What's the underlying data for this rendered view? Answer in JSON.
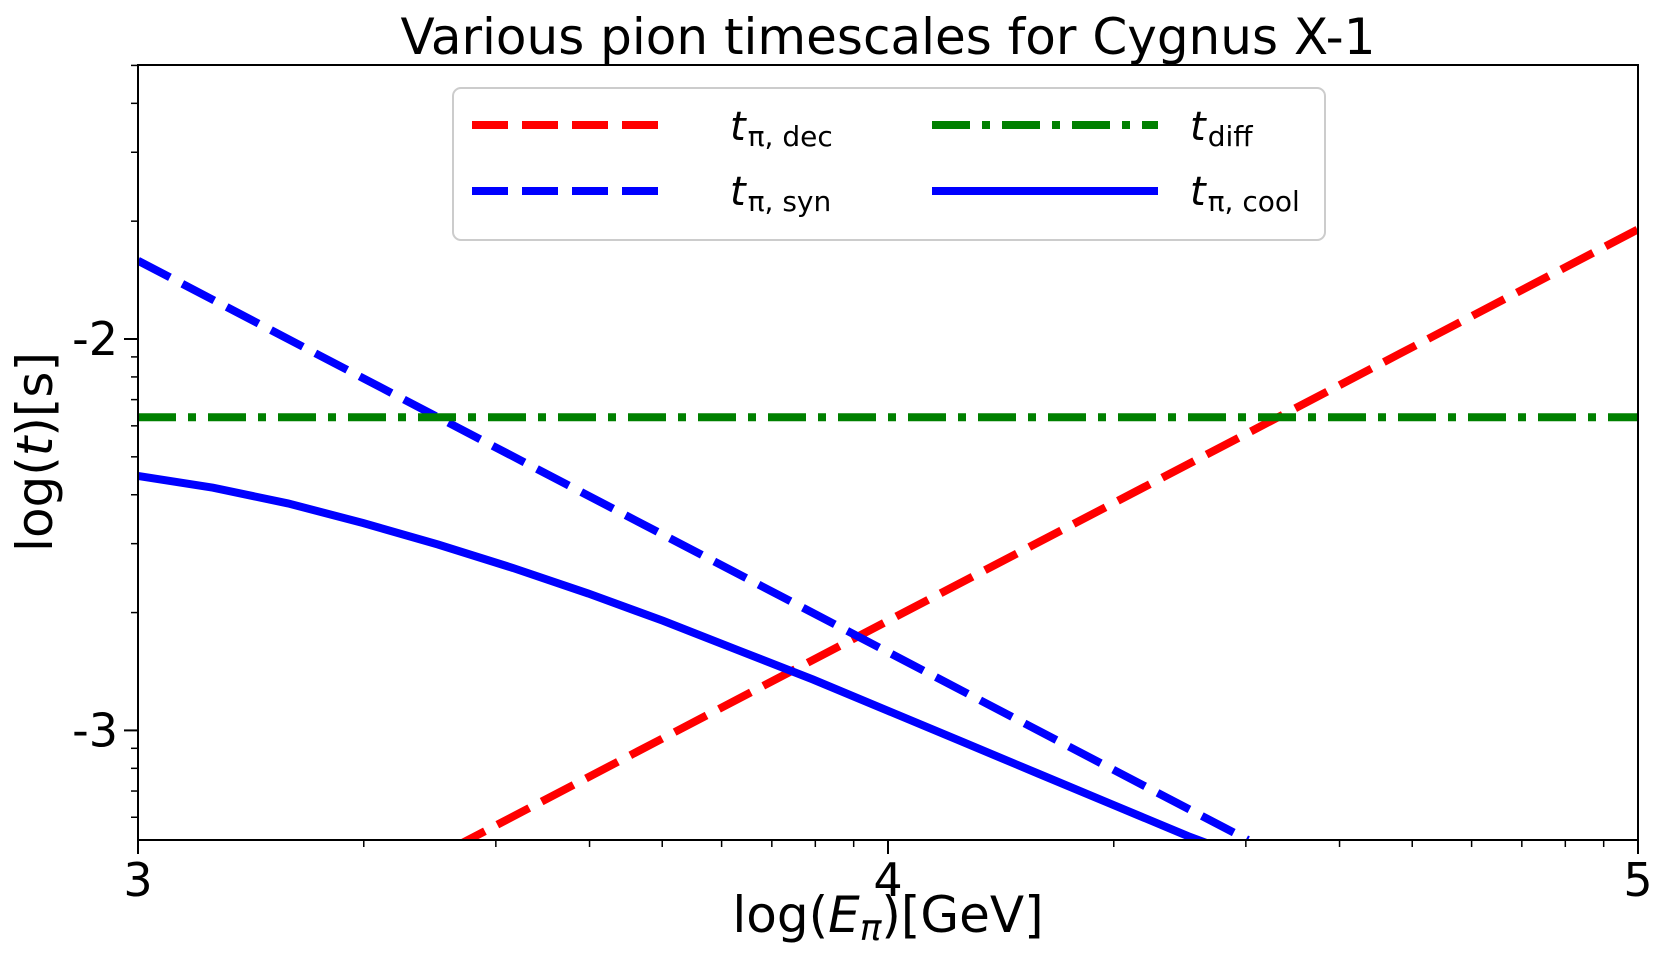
{
  "chart_data": {
    "type": "line",
    "title": "Various pion timescales for Cygnus X-1",
    "xlabel": {
      "prefix": "log(",
      "var": "E",
      "sub": "π",
      "suffix": ")[GeV]"
    },
    "ylabel": {
      "prefix": "log(",
      "var": "t",
      "suffix": ")[s]"
    },
    "xlim": [
      3,
      5
    ],
    "ylim": [
      -3.28,
      -1.3
    ],
    "x_scale": "log",
    "y_scale": "log",
    "x_major_ticks": [
      3,
      4,
      5
    ],
    "x_tick_labels": [
      "3",
      "4",
      "5"
    ],
    "y_major_ticks": [
      -3,
      -2
    ],
    "y_tick_labels": [
      "-3",
      "-2"
    ],
    "grid": false,
    "legend_position": "top-center",
    "series": [
      {
        "key": "dec",
        "name": {
          "main": "t",
          "sub": "π, dec"
        },
        "color": "#ff0000",
        "style": "dashed",
        "x": [
          3.42,
          5.0
        ],
        "y": [
          -3.3,
          -1.72
        ]
      },
      {
        "key": "syn",
        "name": {
          "main": "t",
          "sub": "π, syn"
        },
        "color": "#0000ff",
        "style": "dashed",
        "x": [
          3.0,
          4.48
        ],
        "y": [
          -1.8,
          -3.28
        ]
      },
      {
        "key": "diff",
        "name": {
          "main": "t",
          "sub": "diff"
        },
        "color": "#008000",
        "style": "dashdot",
        "x": [
          3.0,
          5.0
        ],
        "y": [
          -2.2,
          -2.2
        ]
      },
      {
        "key": "cool",
        "name": {
          "main": "t",
          "sub": "π, cool"
        },
        "color": "#0000ff",
        "style": "solid",
        "x": [
          3.0,
          3.1,
          3.2,
          3.3,
          3.4,
          3.5,
          3.6,
          3.7,
          3.8,
          3.9,
          4.0,
          4.1,
          4.2,
          4.3,
          4.4,
          4.47
        ],
        "y": [
          -2.35,
          -2.38,
          -2.42,
          -2.47,
          -2.525,
          -2.585,
          -2.65,
          -2.72,
          -2.795,
          -2.87,
          -2.95,
          -3.03,
          -3.11,
          -3.19,
          -3.27,
          -3.32
        ]
      }
    ]
  }
}
